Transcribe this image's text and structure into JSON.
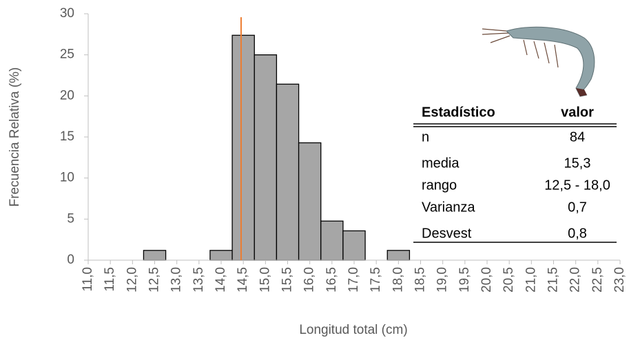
{
  "chart_data": {
    "type": "histogram",
    "x_label": "Longitud total (cm)",
    "y_label": "Frecuencia Relativa (%)",
    "bins": [
      12.25,
      12.75,
      13.25,
      13.75,
      14.25,
      14.75,
      15.25,
      15.75,
      16.25,
      16.75,
      17.25,
      17.75,
      18.25
    ],
    "counts": [
      1.19,
      0,
      0,
      1.19,
      27.38,
      25.0,
      21.43,
      14.29,
      4.76,
      3.57,
      0,
      1.19
    ],
    "color": "#a6a6a6",
    "vline": {
      "x": 14.45,
      "color": "#ed7d31"
    },
    "xlim": [
      11,
      23
    ],
    "xticks": [
      {
        "value": 11,
        "label": "11,0"
      },
      {
        "value": 11.5,
        "label": "11,5"
      },
      {
        "value": 12,
        "label": "12,0"
      },
      {
        "value": 12.5,
        "label": "12,5"
      },
      {
        "value": 13,
        "label": "13,0"
      },
      {
        "value": 13.5,
        "label": "13,5"
      },
      {
        "value": 14,
        "label": "14,0"
      },
      {
        "value": 14.5,
        "label": "14,5"
      },
      {
        "value": 15,
        "label": "15,0"
      },
      {
        "value": 15.5,
        "label": "15,5"
      },
      {
        "value": 16,
        "label": "16,0"
      },
      {
        "value": 16.5,
        "label": "16,5"
      },
      {
        "value": 17,
        "label": "17,0"
      },
      {
        "value": 17.5,
        "label": "17,5"
      },
      {
        "value": 18,
        "label": "18,0"
      },
      {
        "value": 18.5,
        "label": "18,5"
      },
      {
        "value": 19,
        "label": "19,0"
      },
      {
        "value": 19.5,
        "label": "19,5"
      },
      {
        "value": 20,
        "label": "20,0"
      },
      {
        "value": 20.5,
        "label": "20,5"
      },
      {
        "value": 21,
        "label": "21,0"
      },
      {
        "value": 21.5,
        "label": "21,5"
      },
      {
        "value": 22,
        "label": "22,0"
      },
      {
        "value": 22.5,
        "label": "22,5"
      },
      {
        "value": 23,
        "label": "23,0"
      }
    ],
    "ylim": [
      0,
      30
    ],
    "yticks": [
      0,
      5,
      10,
      15,
      20,
      25,
      30
    ],
    "grid": false,
    "stats_table": {
      "header": [
        "Estadístico",
        "valor"
      ],
      "rows": [
        [
          "n",
          "84"
        ],
        [
          "media",
          "15,3"
        ],
        [
          "rango",
          "12,5 - 18,0"
        ],
        [
          "Varianza",
          "0,7"
        ],
        [
          "Desvest",
          "0,8"
        ]
      ]
    }
  }
}
